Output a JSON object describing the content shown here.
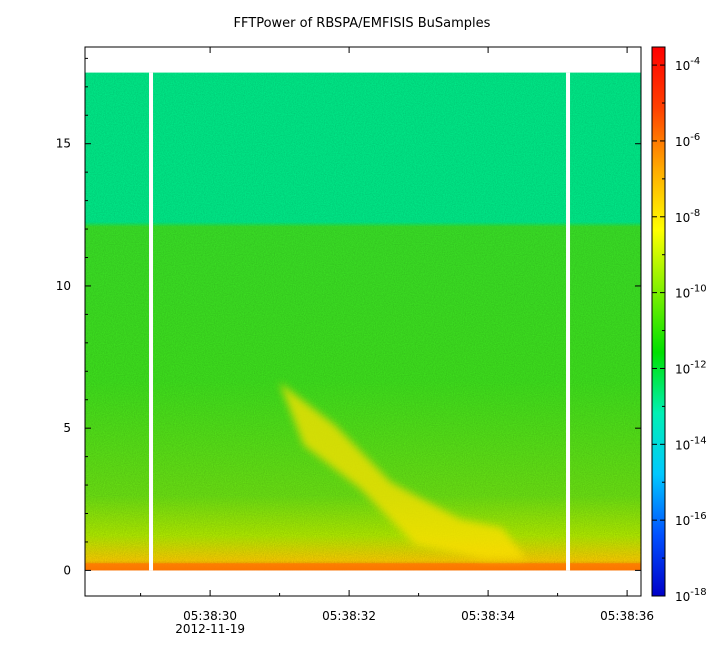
{
  "chart_data": {
    "type": "heatmap",
    "title": "FFTPower of RBSPA/EMFISIS  BuSamples",
    "xlabel": "",
    "ylabel": "",
    "x_date": "2012-11-19",
    "x_tick_labels": [
      "05:38:30",
      "05:38:32",
      "05:38:34",
      "05:38:36"
    ],
    "x_tick_values_s": [
      30,
      32,
      34,
      36
    ],
    "x_range_s": [
      28.2,
      36.2
    ],
    "y_ticks": [
      0,
      5,
      10,
      15
    ],
    "y_tick_labels": [
      "0",
      "5",
      "10",
      "15"
    ],
    "ylim": [
      -0.9,
      18.4
    ],
    "data_y_top": 17.5,
    "data_gaps_s": [
      29.15,
      35.15
    ],
    "colorbar": {
      "scale": "log",
      "range": [
        1e-18,
        0.0003
      ],
      "tick_bases": [
        "10",
        "10",
        "10",
        "10",
        "10",
        "10",
        "10",
        "10"
      ],
      "tick_exponents": [
        "-4",
        "-6",
        "-8",
        "-10",
        "-12",
        "-14",
        "-16",
        "-18"
      ],
      "tick_exp_values": [
        -4,
        -6,
        -8,
        -10,
        -12,
        -14,
        -16,
        -18
      ],
      "colors": [
        "#0000c8",
        "#0050ff",
        "#00c8ff",
        "#00f0b4",
        "#00e000",
        "#80f000",
        "#ffff00",
        "#ffaa00",
        "#ff4000",
        "#ff0000"
      ]
    },
    "features": [
      {
        "name": "",
        "x_s": [
          31.0,
          31.8,
          32.6,
          33.6,
          34.2
        ],
        "y": [
          6.0,
          4.5,
          2.5,
          1.2,
          0.9
        ]
      }
    ]
  }
}
